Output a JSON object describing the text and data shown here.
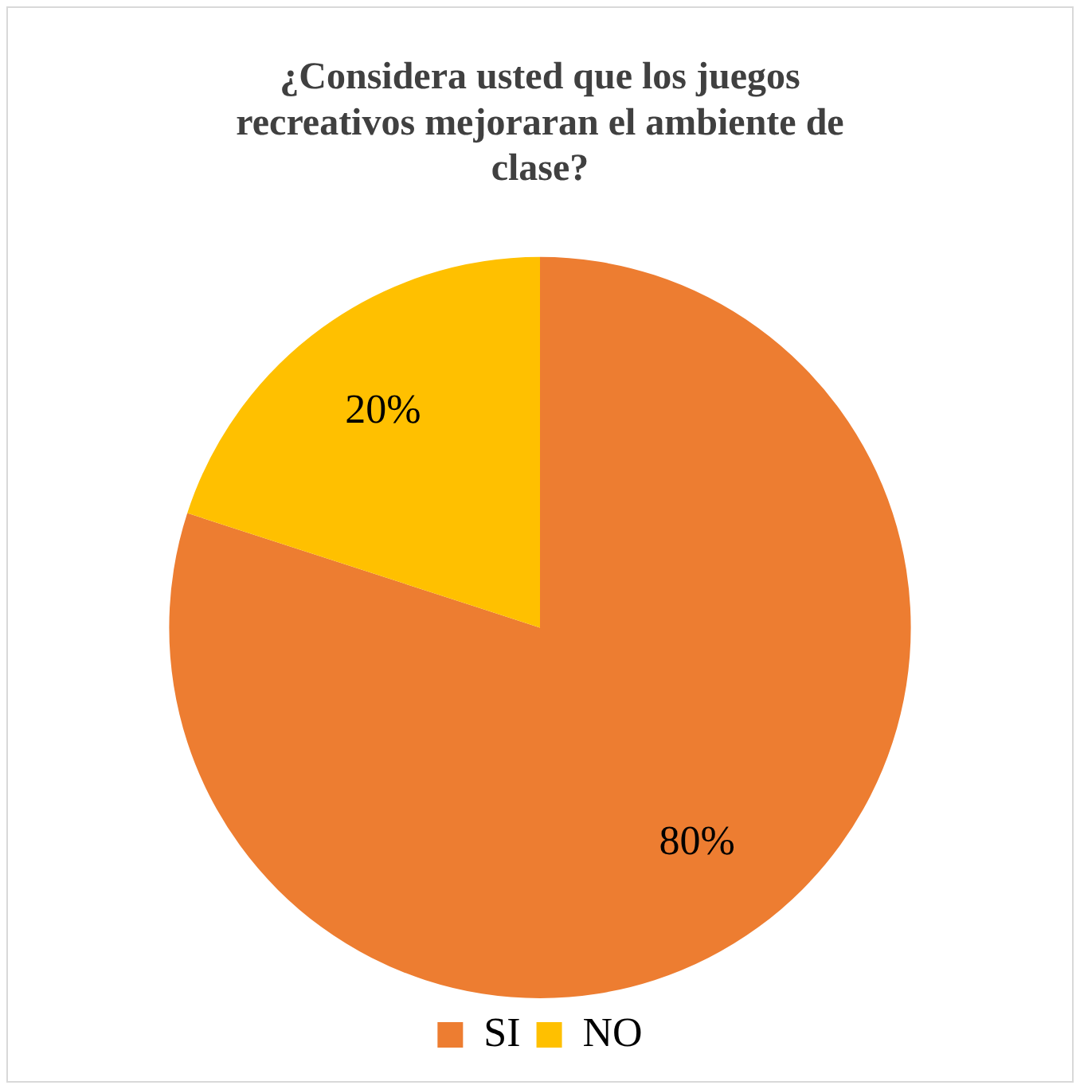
{
  "chart_data": {
    "type": "pie",
    "title": "¿Considera usted que los juegos recreativos mejoraran el ambiente de clase?",
    "categories": [
      "SI",
      "NO"
    ],
    "values": [
      80,
      20
    ],
    "colors": [
      "#ed7d31",
      "#ffc000"
    ],
    "value_labels": [
      "80%",
      "20%"
    ],
    "legend": "bottom"
  }
}
